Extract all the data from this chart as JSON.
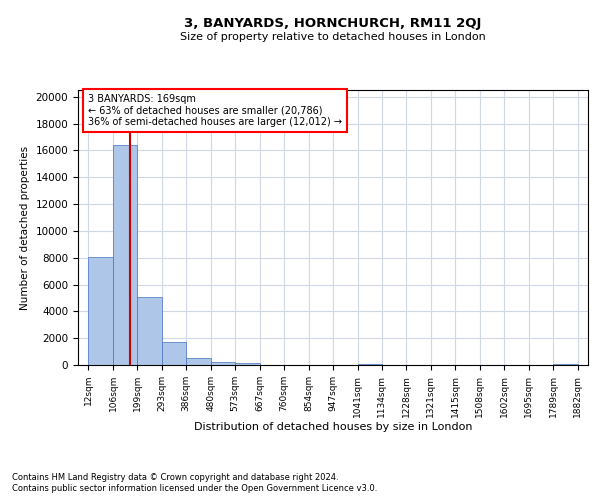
{
  "title_line1": "3, BANYARDS, HORNCHURCH, RM11 2QJ",
  "title_line2": "Size of property relative to detached houses in London",
  "xlabel": "Distribution of detached houses by size in London",
  "ylabel": "Number of detached properties",
  "annotation_line1": "3 BANYARDS: 169sqm",
  "annotation_line2": "← 63% of detached houses are smaller (20,786)",
  "annotation_line3": "36% of semi-detached houses are larger (12,012) →",
  "property_size": 169,
  "bar_edges": [
    12,
    106,
    199,
    293,
    386,
    480,
    573,
    667,
    760,
    854,
    947,
    1041,
    1134,
    1228,
    1321,
    1415,
    1508,
    1602,
    1695,
    1789,
    1882
  ],
  "bar_heights": [
    8050,
    16400,
    5050,
    1700,
    550,
    250,
    150,
    0,
    0,
    0,
    0,
    100,
    0,
    0,
    0,
    0,
    0,
    0,
    0,
    100
  ],
  "bar_color": "#aec6e8",
  "bar_edge_color": "#4472c4",
  "vline_color": "#cc0000",
  "ylim": [
    0,
    20500
  ],
  "yticks": [
    0,
    2000,
    4000,
    6000,
    8000,
    10000,
    12000,
    14000,
    16000,
    18000,
    20000
  ],
  "background_color": "#ffffff",
  "grid_color": "#d0d8e8",
  "footnote_line1": "Contains HM Land Registry data © Crown copyright and database right 2024.",
  "footnote_line2": "Contains public sector information licensed under the Open Government Licence v3.0."
}
